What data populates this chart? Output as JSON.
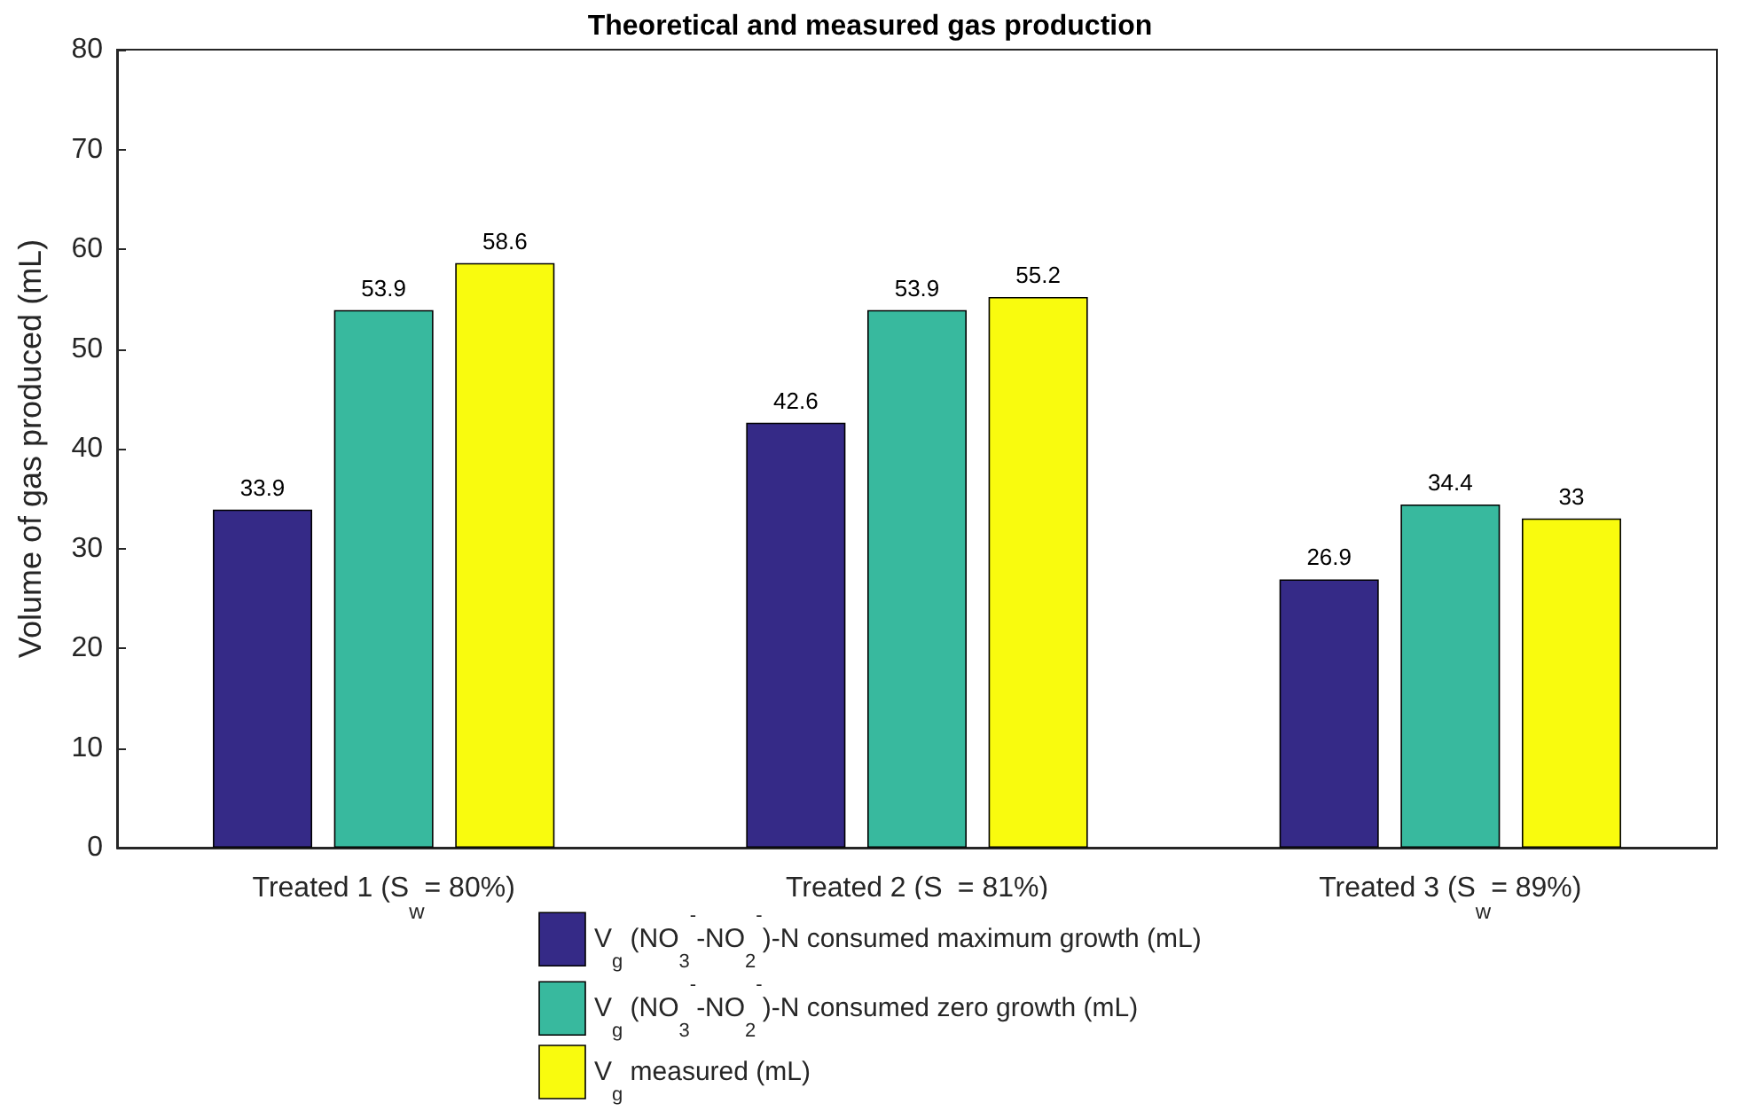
{
  "chart_data": {
    "type": "bar",
    "title": "Theoretical and measured gas production",
    "ylabel": "Volume of gas produced (mL)",
    "categories": [
      "Treated 1 (S$_{w}$= 80%)",
      "Treated 2 (S$_{w}$= 81%)",
      "Treated 3 (S$_{w}$= 89%)"
    ],
    "series": [
      {
        "name": "V$_{g}$ (NO$_{3}$$^{-}$-NO$_{2}$$^{-}$)-N consumed maximum growth (mL)",
        "color": "#352a87",
        "values": [
          33.9,
          42.6,
          26.9
        ]
      },
      {
        "name": "V$_{g}$ (NO$_{3}$$^{-}$-NO$_{2}$$^{-}$)-N consumed zero growth (mL)",
        "color": "#38b99e",
        "values": [
          53.9,
          53.9,
          34.4
        ]
      },
      {
        "name": "V$_{g}$ measured (mL)",
        "color": "#f9fb0e",
        "values": [
          58.6,
          55.2,
          33
        ]
      }
    ],
    "ylim": [
      0,
      80
    ],
    "yticks": [
      0,
      10,
      20,
      30,
      40,
      50,
      60,
      70,
      80
    ],
    "data_labels": true,
    "legend": "bottom",
    "grid": false
  }
}
